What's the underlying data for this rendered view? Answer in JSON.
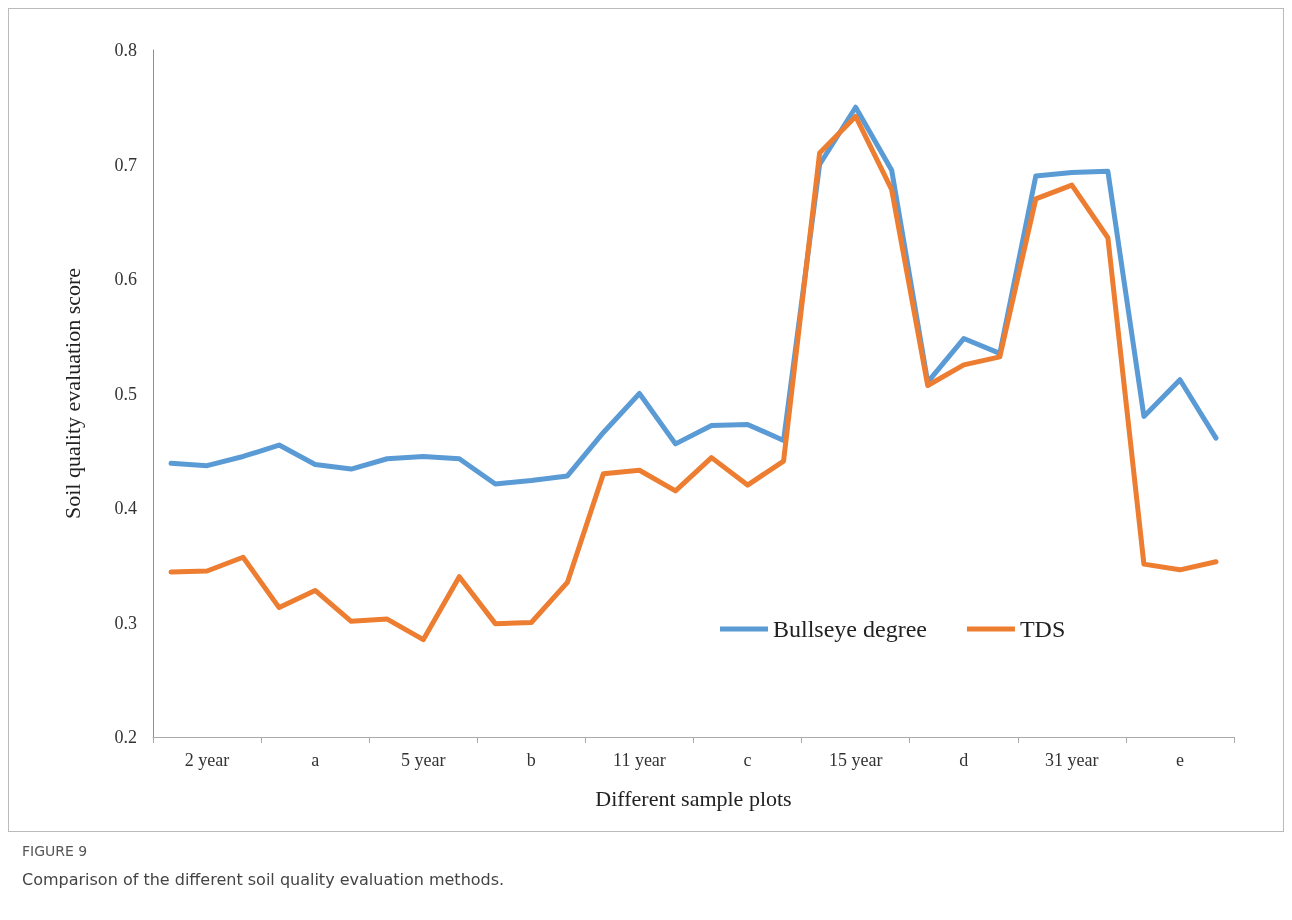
{
  "chart_data": {
    "type": "line",
    "title": "FIGURE 9",
    "subtitle": "Comparison of the different soil quality evaluation methods.",
    "xlabel": "Different sample plots",
    "ylabel": "Soil quality evaluation score",
    "categories": [
      null,
      "2 year",
      null,
      null,
      "a",
      null,
      null,
      "5 year",
      null,
      null,
      "b",
      null,
      null,
      "11 year",
      null,
      null,
      "c",
      null,
      null,
      "15 year",
      null,
      null,
      "d",
      null,
      null,
      "31 year",
      null,
      null,
      "e",
      null
    ],
    "series": [
      {
        "name": "Bullseye degree",
        "color": "#5b9bd5",
        "values": [
          0.439,
          0.437,
          0.445,
          0.455,
          0.438,
          0.434,
          0.443,
          0.445,
          0.443,
          0.421,
          0.424,
          0.428,
          0.466,
          0.5,
          0.456,
          0.472,
          0.473,
          0.459,
          0.7,
          0.75,
          0.695,
          0.51,
          0.548,
          0.535,
          0.69,
          0.693,
          0.694,
          0.48,
          0.512,
          0.461
        ]
      },
      {
        "name": "TDS",
        "color": "#ed7d31",
        "values": [
          0.344,
          0.345,
          0.357,
          0.313,
          0.328,
          0.301,
          0.303,
          0.285,
          0.34,
          0.299,
          0.3,
          0.335,
          0.43,
          0.433,
          0.415,
          0.444,
          0.42,
          0.441,
          0.71,
          0.742,
          0.678,
          0.507,
          0.525,
          0.532,
          0.67,
          0.682,
          0.636,
          0.351,
          0.346,
          0.353
        ]
      }
    ],
    "ylim": [
      0.2,
      0.8
    ],
    "yticks": [
      0.2,
      0.3,
      0.4,
      0.5,
      0.6,
      0.7,
      0.8
    ],
    "grid": false,
    "legend": "bottom right",
    "marker": "none",
    "line_style": "solid"
  }
}
